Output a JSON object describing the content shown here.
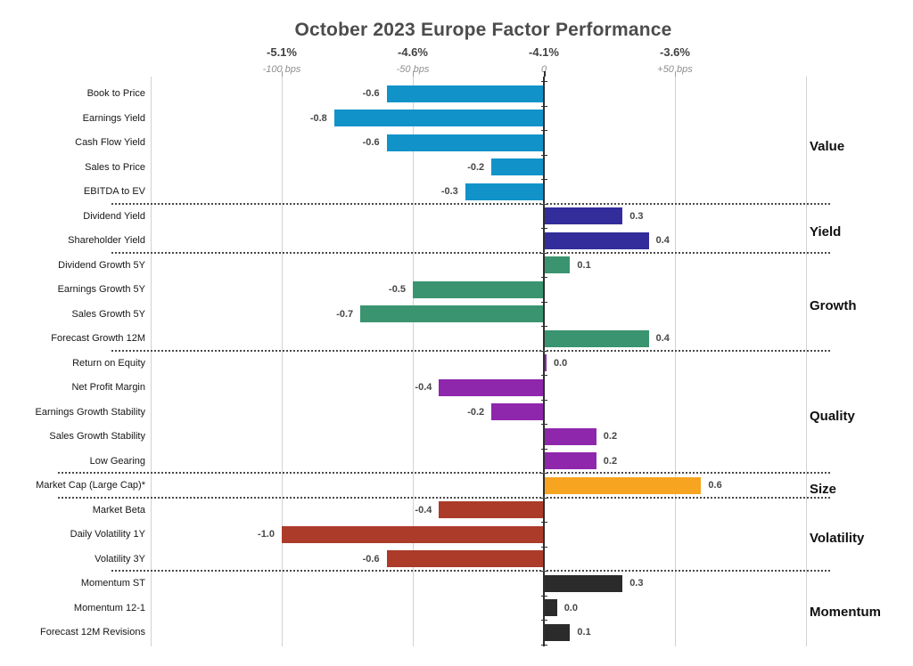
{
  "chart_data": {
    "type": "bar",
    "orientation": "horizontal",
    "title": "October 2023 Europe Factor Performance",
    "axis_top": {
      "percent_labels": [
        "-5.1%",
        "-4.6%",
        "-4.1%",
        "-3.6%"
      ],
      "bps_labels": [
        "-100 bps",
        "-50 bps",
        "0",
        "+50 bps"
      ],
      "bps_values": [
        -100,
        -50,
        0,
        50
      ],
      "range_bps": [
        -150,
        100
      ],
      "grid": true
    },
    "value_note": "bar labels are in % (1.0 = 100 bps)",
    "groups": [
      {
        "name": "Value",
        "color": "#1193c9",
        "items": [
          {
            "label": "Book to Price",
            "value": -0.6,
            "display": "-0.6"
          },
          {
            "label": "Earnings Yield",
            "value": -0.8,
            "display": "-0.8"
          },
          {
            "label": "Cash Flow Yield",
            "value": -0.6,
            "display": "-0.6"
          },
          {
            "label": "Sales to Price",
            "value": -0.2,
            "display": "-0.2"
          },
          {
            "label": "EBITDA to EV",
            "value": -0.3,
            "display": "-0.3"
          }
        ]
      },
      {
        "name": "Yield",
        "color": "#332d9b",
        "items": [
          {
            "label": "Dividend Yield",
            "value": 0.3,
            "display": "0.3"
          },
          {
            "label": "Shareholder Yield",
            "value": 0.4,
            "display": "0.4"
          }
        ]
      },
      {
        "name": "Growth",
        "color": "#3a9470",
        "items": [
          {
            "label": "Dividend Growth 5Y",
            "value": 0.1,
            "display": "0.1"
          },
          {
            "label": "Earnings Growth 5Y",
            "value": -0.5,
            "display": "-0.5"
          },
          {
            "label": "Sales Growth 5Y",
            "value": -0.7,
            "display": "-0.7"
          },
          {
            "label": "Forecast Growth 12M",
            "value": 0.4,
            "display": "0.4"
          }
        ]
      },
      {
        "name": "Quality",
        "color": "#8f27ad",
        "items": [
          {
            "label": "Return on Equity",
            "value": 0.0,
            "display": "0.0",
            "bar_extent": 0.01
          },
          {
            "label": "Net Profit Margin",
            "value": -0.4,
            "display": "-0.4"
          },
          {
            "label": "Earnings Growth Stability",
            "value": -0.2,
            "display": "-0.2"
          },
          {
            "label": "Sales Growth Stability",
            "value": 0.2,
            "display": "0.2"
          },
          {
            "label": "Low Gearing",
            "value": 0.2,
            "display": "0.2"
          }
        ]
      },
      {
        "name": "Size",
        "color": "#f7a420",
        "items": [
          {
            "label": "Market Cap (Large Cap)*",
            "value": 0.6,
            "display": "0.6"
          }
        ]
      },
      {
        "name": "Volatility",
        "color": "#ac3b2a",
        "items": [
          {
            "label": "Market Beta",
            "value": -0.4,
            "display": "-0.4"
          },
          {
            "label": "Daily Volatility 1Y",
            "value": -1.0,
            "display": "-1.0"
          },
          {
            "label": "Volatility 3Y",
            "value": -0.6,
            "display": "-0.6"
          }
        ]
      },
      {
        "name": "Momentum",
        "color": "#2b2b2b",
        "items": [
          {
            "label": "Momentum ST",
            "value": 0.3,
            "display": "0.3"
          },
          {
            "label": "Momentum 12-1",
            "value": 0.0,
            "display": "0.0",
            "bar_extent": 0.05
          },
          {
            "label": "Forecast 12M Revisions",
            "value": 0.1,
            "display": "0.1"
          }
        ]
      }
    ]
  }
}
